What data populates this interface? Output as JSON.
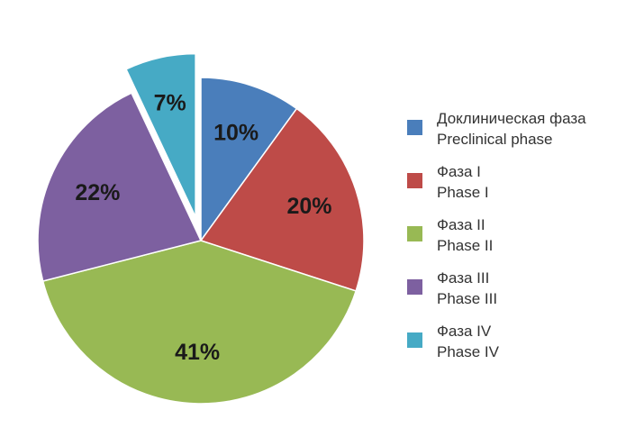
{
  "chart_data": {
    "type": "pie",
    "title": "",
    "legend_position": "right",
    "exploded_slice_index": 4,
    "slices": [
      {
        "label_ru": "Доклиническая фаза",
        "label_en": "Preclinical phase",
        "value": 10,
        "value_label": "10%",
        "color": "#4a7ebb"
      },
      {
        "label_ru": "Фаза I",
        "label_en": "Phase I",
        "value": 20,
        "value_label": "20%",
        "color": "#be4b48"
      },
      {
        "label_ru": "Фаза II",
        "label_en": "Phase II",
        "value": 41,
        "value_label": "41%",
        "color": "#98b954"
      },
      {
        "label_ru": "Фаза III",
        "label_en": "Phase III",
        "value": 22,
        "value_label": "22%",
        "color": "#7d60a0"
      },
      {
        "label_ru": "Фаза IV",
        "label_en": "Phase IV",
        "value": 7,
        "value_label": "7%",
        "color": "#46aac5"
      }
    ]
  }
}
